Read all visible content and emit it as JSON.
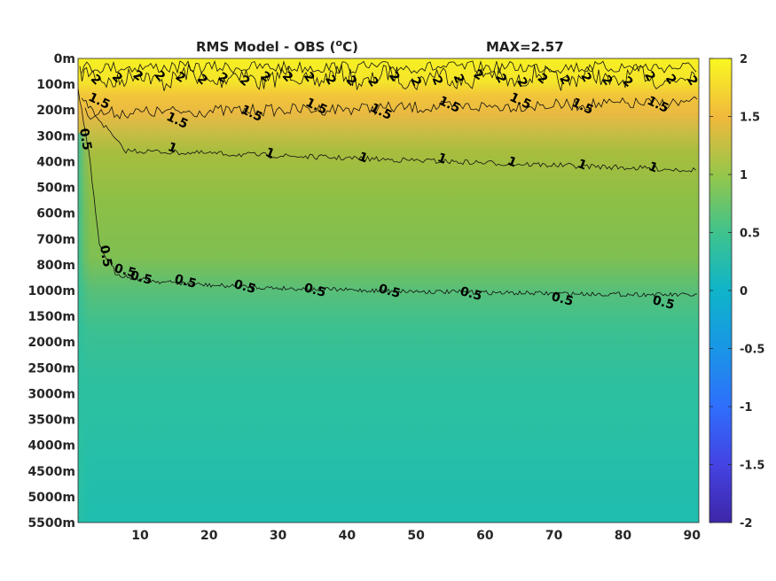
{
  "chart_data": {
    "type": "heatmap",
    "title": "RMS Model - OBS (",
    "title_super": "o",
    "title_unit": "C)",
    "max_label": "MAX=2.57",
    "x_ticks": [
      10,
      20,
      30,
      40,
      50,
      60,
      70,
      80,
      90
    ],
    "x_range": [
      1,
      91
    ],
    "y_tick_labels": [
      "0m",
      "100m",
      "200m",
      "300m",
      "400m",
      "500m",
      "600m",
      "700m",
      "800m",
      "1000m",
      "1500m",
      "2000m",
      "2500m",
      "3000m",
      "3500m",
      "4000m",
      "4500m",
      "5000m",
      "5500m"
    ],
    "colorbar": {
      "range": [
        -2,
        2
      ],
      "ticks": [
        2,
        1.5,
        1,
        0.5,
        0,
        -0.5,
        -1,
        -1.5,
        -2
      ],
      "tick_labels": [
        "2",
        "1.5",
        "1",
        "0.5",
        "0",
        "-0.5",
        "-1",
        "-1.5",
        "-2"
      ],
      "colormap": "parula"
    },
    "contours": [
      {
        "level": 2,
        "label": "2"
      },
      {
        "level": 1.5,
        "label": "1.5"
      },
      {
        "level": 1,
        "label": "1"
      },
      {
        "level": 0.5,
        "label": "0.5"
      }
    ]
  }
}
